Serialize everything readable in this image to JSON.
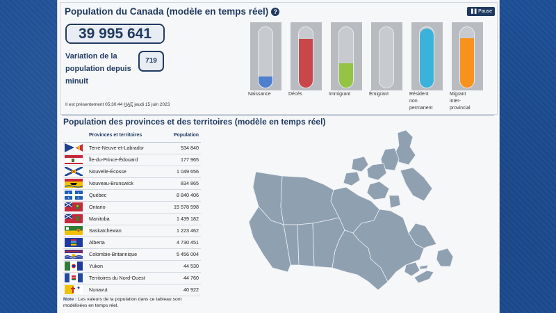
{
  "header": {
    "title": "Population du Canada (modèle en temps réel)",
    "help_icon": "?",
    "pause_label": "Pause",
    "pause_icon": "pause-icon"
  },
  "population": {
    "value": "39 995 641"
  },
  "variation": {
    "label": "Variation de la population depuis minuit",
    "value": "719"
  },
  "timestamp": {
    "prefix": "Il est présentement 05:30:44",
    "tz": "HAE",
    "date": "jeudi 15 juin 2023"
  },
  "gauges": [
    {
      "label": "Naissance",
      "fill": 0.18,
      "color": "#4f7fcf"
    },
    {
      "label": "Décès",
      "fill": 0.8,
      "color": "#c9474a"
    },
    {
      "label": "Immigrant",
      "fill": 0.4,
      "color": "#93c444"
    },
    {
      "label": "Émigrant",
      "fill": 0.0,
      "color": "#aaaaaa"
    },
    {
      "label": "Résident non permanent",
      "fill": 0.98,
      "color": "#3ab2dc"
    },
    {
      "label": "Migrant inter-provincial",
      "fill": 0.82,
      "color": "#f7921e"
    }
  ],
  "provinces": {
    "title": "Population des provinces et des territoires (modèle en temps réel)",
    "col_name": "Provinces et territoires",
    "col_pop": "Population",
    "rows": [
      {
        "name": "Terre-Neuve-et-Labrador",
        "pop": "534 840",
        "flag": "nl"
      },
      {
        "name": "Île-du-Prince-Édouard",
        "pop": "177 965",
        "flag": "pe"
      },
      {
        "name": "Nouvelle-Écosse",
        "pop": "1 049 656",
        "flag": "ns"
      },
      {
        "name": "Nouveau-Brunswick",
        "pop": "834 865",
        "flag": "nb"
      },
      {
        "name": "Québec",
        "pop": "8 840 406",
        "flag": "qc"
      },
      {
        "name": "Ontario",
        "pop": "15 578 598",
        "flag": "on"
      },
      {
        "name": "Manitoba",
        "pop": "1 439 182",
        "flag": "mb"
      },
      {
        "name": "Saskatchewan",
        "pop": "1 223 462",
        "flag": "sk"
      },
      {
        "name": "Alberta",
        "pop": "4 730 451",
        "flag": "ab"
      },
      {
        "name": "Colombie-Britannique",
        "pop": "5 456 004",
        "flag": "bc"
      },
      {
        "name": "Yukon",
        "pop": "44 530",
        "flag": "yt"
      },
      {
        "name": "Territoires du Nord-Ouest",
        "pop": "44 760",
        "flag": "nt"
      },
      {
        "name": "Nunavut",
        "pop": "40 922",
        "flag": "nu"
      }
    ]
  },
  "note": {
    "label": "Note :",
    "text": "Les valeurs de la population dans ce tableau sont modélisées en temps réel."
  },
  "map": {
    "icon": "canada-map"
  }
}
